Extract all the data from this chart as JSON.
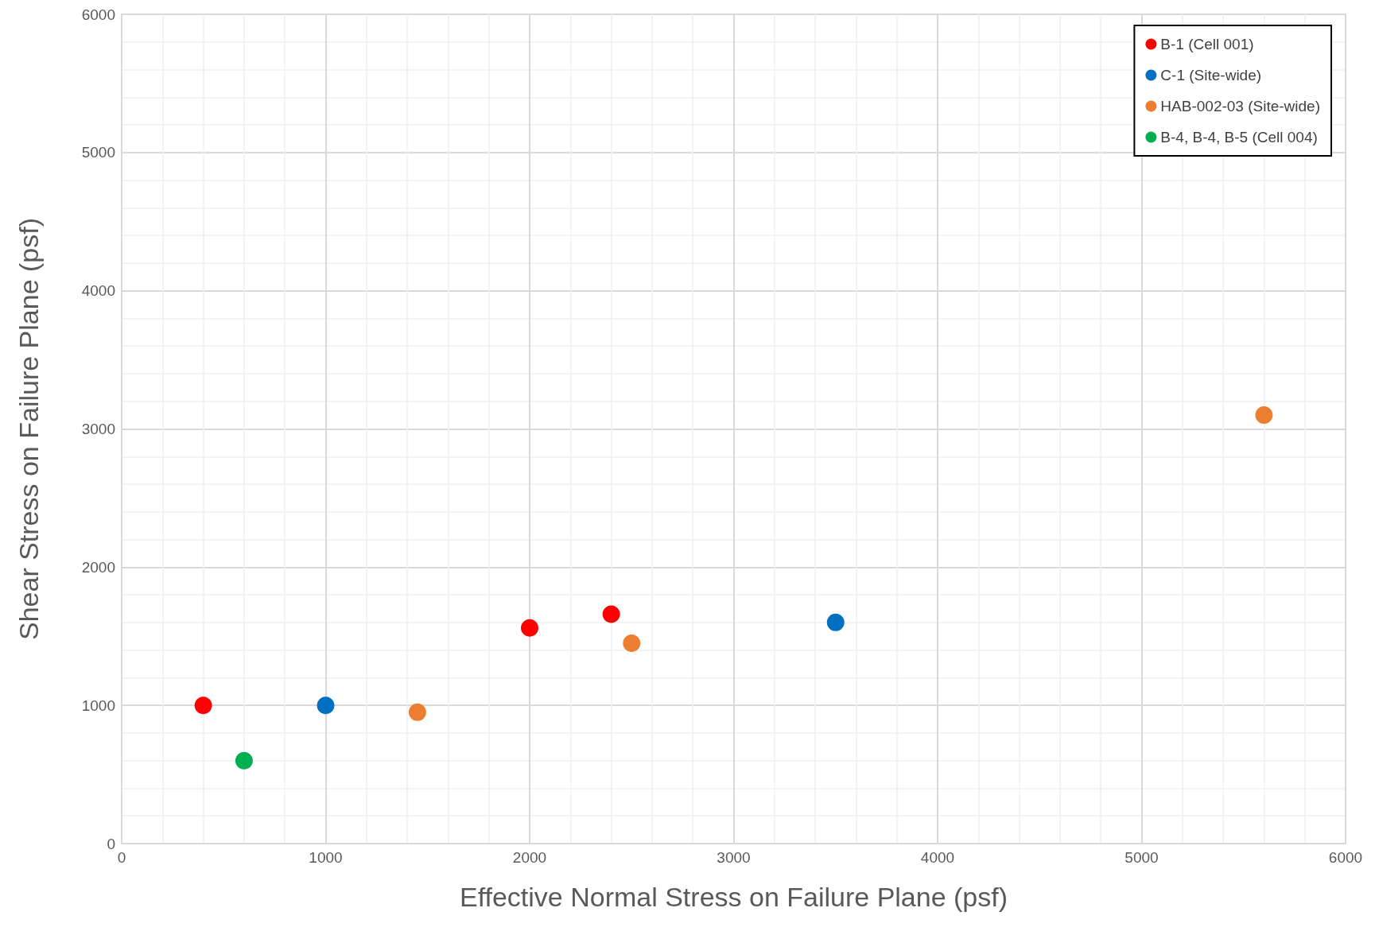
{
  "chart_data": {
    "type": "scatter",
    "xlabel": "Effective Normal Stress on Failure Plane (psf)",
    "ylabel": "Shear Stress on Failure Plane (psf)",
    "xlim": [
      0,
      6000
    ],
    "xticks": [
      0,
      1000,
      2000,
      3000,
      4000,
      5000,
      6000
    ],
    "ylim": [
      0,
      6000
    ],
    "yticks": [
      0,
      1000,
      2000,
      3000,
      4000,
      5000,
      6000
    ],
    "grid": true,
    "legend": "top right",
    "marker": "circle",
    "series": [
      {
        "name": "B-1 (Cell 001)",
        "color": "#ff0000",
        "x": [
          400,
          2000,
          2400
        ],
        "values": [
          1000,
          1560,
          1660
        ]
      },
      {
        "name": "C-1 (Site-wide)",
        "color": "#0070c0",
        "x": [
          1000,
          3500
        ],
        "values": [
          1000,
          1600
        ]
      },
      {
        "name": "HAB-002-03 (Site-wide)",
        "color": "#ed7d31",
        "x": [
          1450,
          2500,
          5600
        ],
        "values": [
          950,
          1450,
          3100
        ]
      },
      {
        "name": "B-4, B-4, B-5 (Cell 004)",
        "color": "#00b050",
        "x": [
          600
        ],
        "values": [
          600
        ]
      }
    ]
  }
}
